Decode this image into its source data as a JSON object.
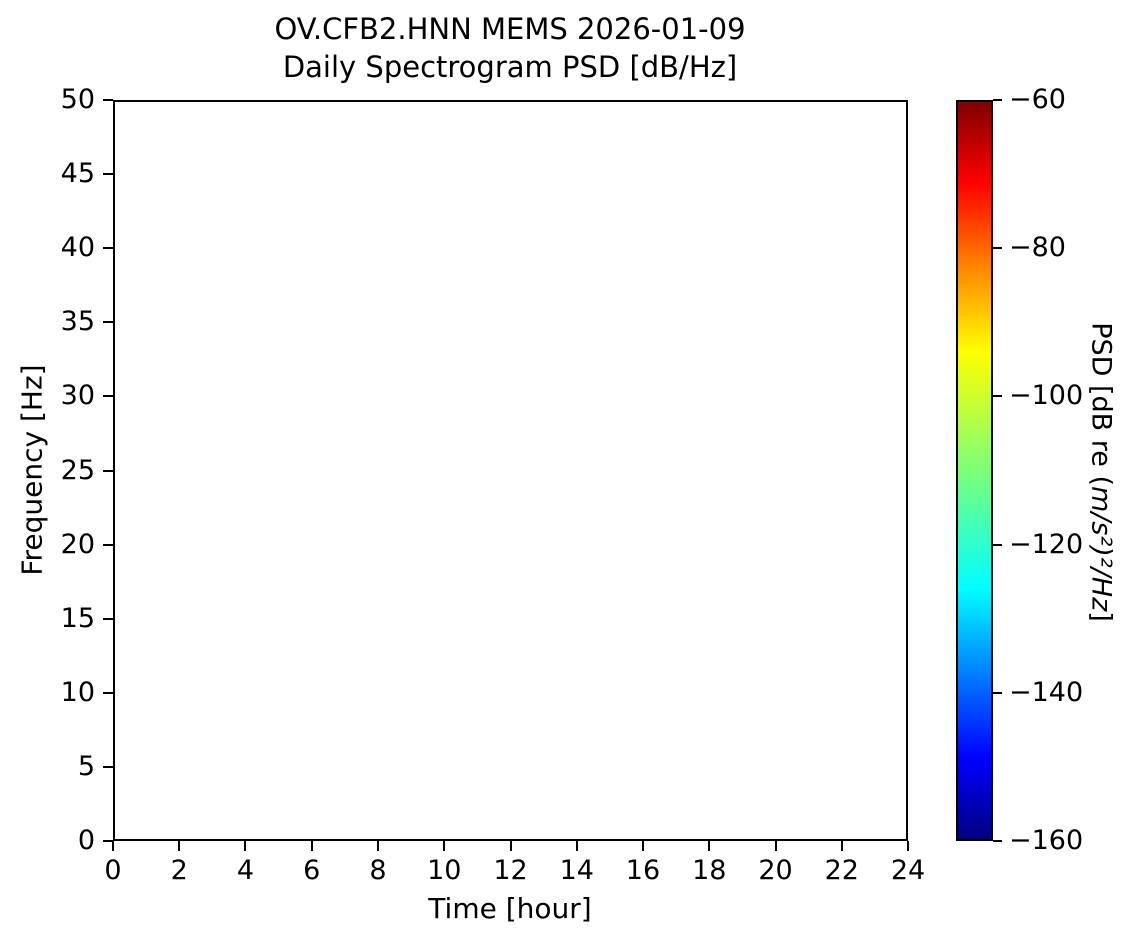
{
  "figure": {
    "title_line1": "OV.CFB2.HNN MEMS 2026-01-09",
    "title_line2": "Daily Spectrogram PSD [dB/Hz]",
    "xlabel": "Time [hour]",
    "ylabel": "Frequency [Hz]",
    "colorbar_label_prefix": "PSD [dB re (",
    "colorbar_label_math": "m/s²)²/Hz",
    "colorbar_label_suffix": "]"
  },
  "chart_data": {
    "type": "heatmap",
    "title": "OV.CFB2.HNN MEMS 2026-01-09\nDaily Spectrogram PSD [dB/Hz]",
    "xlabel": "Time [hour]",
    "ylabel": "Frequency [Hz]",
    "xlim": [
      0,
      24
    ],
    "ylim": [
      0,
      50
    ],
    "xticks": [
      0,
      2,
      4,
      6,
      8,
      10,
      12,
      14,
      16,
      18,
      20,
      22,
      24
    ],
    "yticks": [
      0,
      5,
      10,
      15,
      20,
      25,
      30,
      35,
      40,
      45,
      50
    ],
    "grid": false,
    "legend": false,
    "values": [],
    "plot_area_empty": true,
    "colorbar": {
      "label": "PSD [dB re (m/s²)²/Hz]",
      "colormap": "jet",
      "vmin": -160,
      "vmax": -60,
      "ticks": [
        -60,
        -80,
        -100,
        -120,
        -140,
        -160
      ],
      "orientation": "vertical",
      "gradient_top_to_bottom": [
        {
          "pos": 0,
          "color": "#800000"
        },
        {
          "pos": 11,
          "color": "#ff0000"
        },
        {
          "pos": 23,
          "color": "#ff8c00"
        },
        {
          "pos": 34,
          "color": "#ffff00"
        },
        {
          "pos": 50,
          "color": "#7dff78"
        },
        {
          "pos": 66,
          "color": "#00ffff"
        },
        {
          "pos": 89,
          "color": "#0000ff"
        },
        {
          "pos": 100,
          "color": "#000080"
        }
      ]
    }
  }
}
